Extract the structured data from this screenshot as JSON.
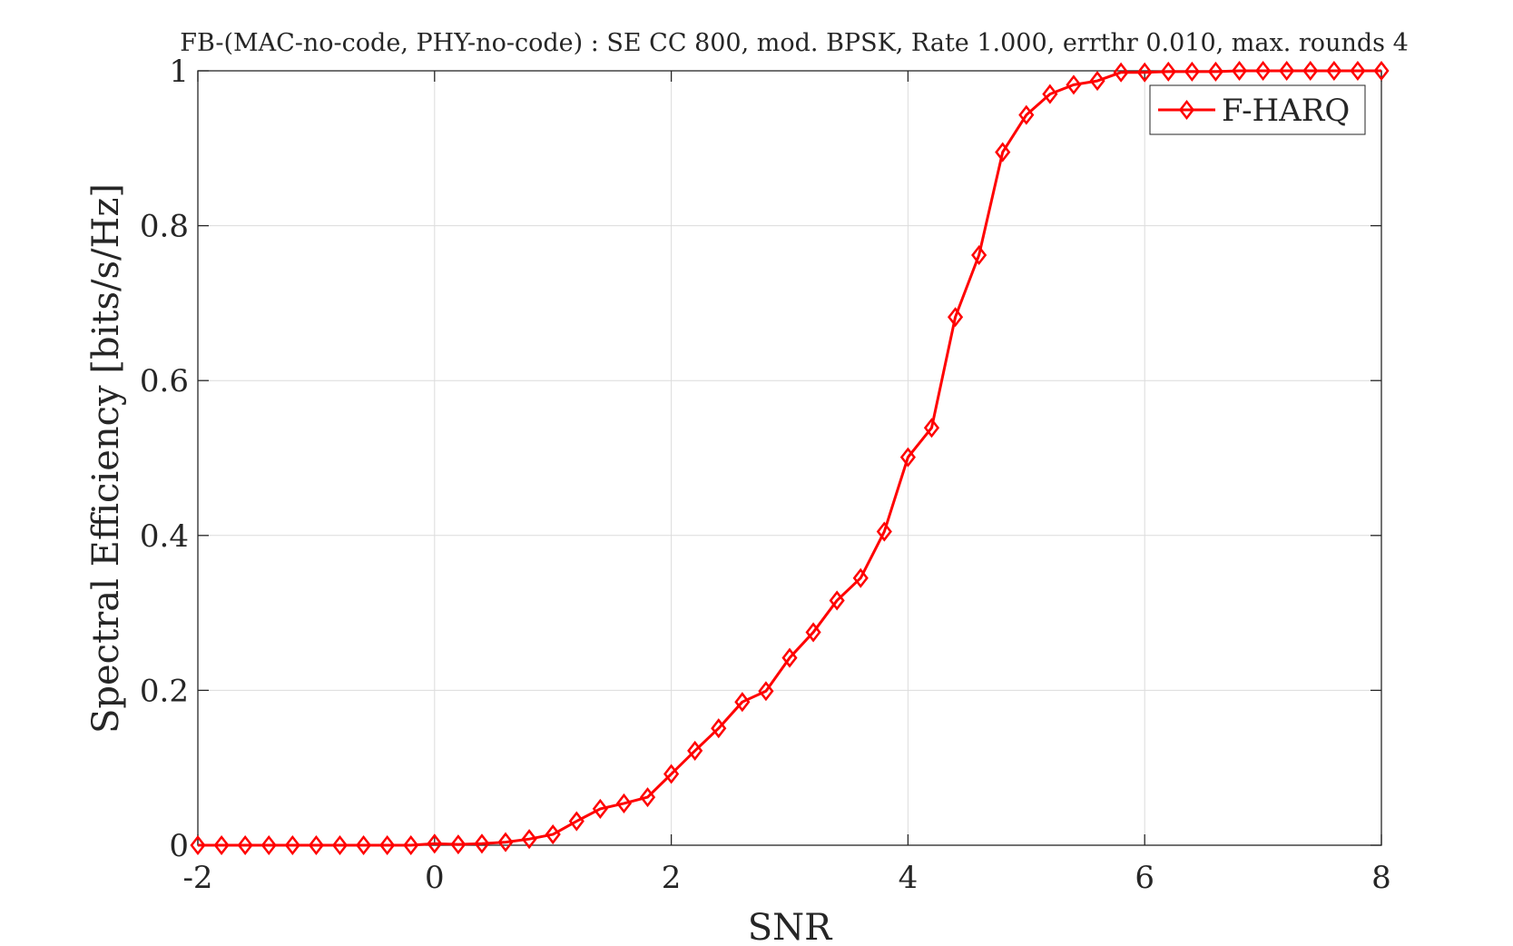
{
  "chart_data": {
    "type": "line",
    "title": "FB-(MAC-no-code, PHY-no-code) : SE CC 800, mod. BPSK, Rate 1.000, errthr 0.010, max. rounds 4",
    "xlabel": "SNR",
    "ylabel": "Spectral Efficiency [bits/s/Hz]",
    "xlim": [
      -2,
      8
    ],
    "ylim": [
      0,
      1
    ],
    "xticks": [
      -2,
      0,
      2,
      4,
      6,
      8
    ],
    "yticks": [
      0,
      0.2,
      0.4,
      0.6,
      0.8,
      1
    ],
    "xtick_labels": [
      "-2",
      "0",
      "2",
      "4",
      "6",
      "8"
    ],
    "ytick_labels": [
      "0",
      "0.2",
      "0.4",
      "0.6",
      "0.8",
      "1"
    ],
    "grid": true,
    "legend_position": "top-right",
    "series": [
      {
        "name": "F-HARQ",
        "color": "#ff0000",
        "marker": "diamond",
        "x": [
          -2,
          -1.8,
          -1.6,
          -1.4,
          -1.2,
          -1,
          -0.8,
          -0.6,
          -0.4,
          -0.2,
          0,
          0.2,
          0.4,
          0.6,
          0.8,
          1,
          1.2,
          1.4,
          1.6,
          1.8,
          2,
          2.2,
          2.4,
          2.6,
          2.8,
          3,
          3.2,
          3.4,
          3.6,
          3.8,
          4,
          4.2,
          4.4,
          4.6,
          4.8,
          5,
          5.2,
          5.4,
          5.6,
          5.8,
          6,
          6.2,
          6.4,
          6.6,
          6.8,
          7,
          7.2,
          7.4,
          7.6,
          7.8,
          8
        ],
        "y": [
          0,
          0,
          0,
          0,
          0,
          0,
          0,
          0,
          0,
          0,
          0.002,
          0.001,
          0.002,
          0.004,
          0.008,
          0.014,
          0.031,
          0.047,
          0.054,
          0.062,
          0.092,
          0.122,
          0.151,
          0.185,
          0.199,
          0.242,
          0.275,
          0.316,
          0.345,
          0.405,
          0.501,
          0.539,
          0.682,
          0.762,
          0.895,
          0.943,
          0.97,
          0.982,
          0.987,
          0.998,
          0.998,
          0.999,
          0.999,
          0.999,
          1,
          1,
          1,
          1,
          1,
          1,
          1
        ]
      }
    ]
  }
}
